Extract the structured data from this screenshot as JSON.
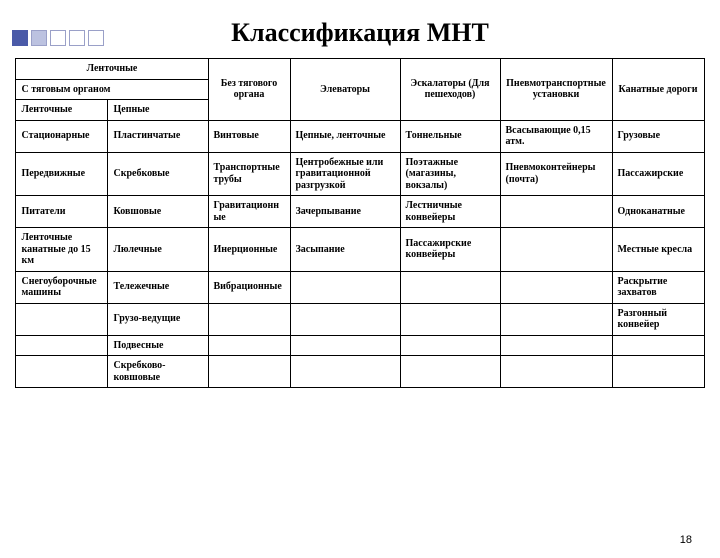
{
  "title": "Классификация МНТ",
  "pageNumber": "18",
  "header": {
    "r1c1": "Ленточные",
    "r2c1": "С тяговым органом",
    "r2c3": "Без тягового органа",
    "r2c4": "Элеваторы",
    "r2c5": "Эскалаторы (Для пешеходов)",
    "r2c6": "Пневмотранспортные установки",
    "r2c7": "Канатные дороги",
    "r3c1": "Ленточные",
    "r3c2": "Цепные"
  },
  "rows": [
    {
      "c1": "Стационарные",
      "c2": "Пластинчатые",
      "c3": "Винтовые",
      "c4": "Цепные, ленточные",
      "c5": "Тоннельные",
      "c6": "Всасывающие 0,15 атм.",
      "c7": "Грузовые"
    },
    {
      "c1": "Передвижные",
      "c2": "Скребковые",
      "c3": "Транспортные трубы",
      "c4": "Центробежные или гравитационной разгрузкой",
      "c5": "Поэтажные (магазины, вокзалы)",
      "c6": "Пневмоконтейнеры (почта)",
      "c7": "Пассажирские"
    },
    {
      "c1": "Питатели",
      "c2": "Ковшовые",
      "c3": "Гравитационные",
      "c4": "Зачерпывание",
      "c5": "Лестничные конвейеры",
      "c6": "",
      "c7": "Одноканатные"
    },
    {
      "c1": "Ленточные канатные до 15 км",
      "c2": "Люлечные",
      "c3": "Инерционные",
      "c4": "Засыпание",
      "c5": "Пассажирские конвейеры",
      "c6": "",
      "c7": "Местные кресла"
    },
    {
      "c1": "Снегоуборочные машины",
      "c2": "Тележечные",
      "c3": "Вибрационные",
      "c4": "",
      "c5": "",
      "c6": "",
      "c7": "Раскрытие захватов"
    },
    {
      "c1": "",
      "c2": "Грузо-ведущие",
      "c3": "",
      "c4": "",
      "c5": "",
      "c6": "",
      "c7": "Разгонный конвейер"
    },
    {
      "c1": "",
      "c2": "Подвесные",
      "c3": "",
      "c4": "",
      "c5": "",
      "c6": "",
      "c7": ""
    },
    {
      "c1": "",
      "c2": "Скребково-ковшовые",
      "c3": "",
      "c4": "",
      "c5": "",
      "c6": "",
      "c7": ""
    }
  ]
}
